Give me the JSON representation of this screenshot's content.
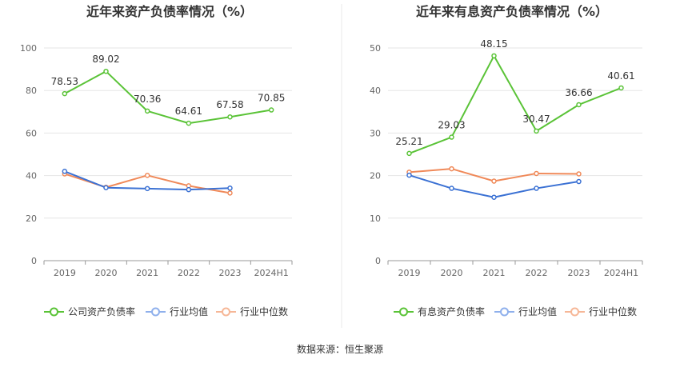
{
  "chart_data": [
    {
      "type": "line",
      "title": "近年来资产负债率情况（%）",
      "categories": [
        "2019",
        "2020",
        "2021",
        "2022",
        "2023",
        "2024H1"
      ],
      "ylim": [
        0,
        100
      ],
      "yticks": [
        0,
        20,
        40,
        60,
        80,
        100
      ],
      "ytick_labels": [
        "0",
        "20",
        "40",
        "60",
        "80",
        "100"
      ],
      "grid": true,
      "legend_position": "bottom",
      "series": [
        {
          "name": "公司资产负债率",
          "color": "#5ac337",
          "labeled": true,
          "values": [
            78.53,
            89.02,
            70.36,
            64.61,
            67.58,
            70.85
          ],
          "labels": [
            "78.53",
            "89.02",
            "70.36",
            "64.61",
            "67.58",
            "70.85"
          ]
        },
        {
          "name": "行业均值",
          "color": "#3c72d4",
          "labeled": false,
          "values": [
            42.0,
            34.3,
            33.9,
            33.4,
            34.1,
            null
          ]
        },
        {
          "name": "行业中位数",
          "color": "#f08a5a",
          "labeled": false,
          "values": [
            40.8,
            34.5,
            40.1,
            35.2,
            31.8,
            null
          ]
        }
      ]
    },
    {
      "type": "line",
      "title": "近年来有息资产负债率情况（%）",
      "categories": [
        "2019",
        "2020",
        "2021",
        "2022",
        "2023",
        "2024H1"
      ],
      "ylim": [
        0,
        50
      ],
      "yticks": [
        0,
        10,
        20,
        30,
        40,
        50
      ],
      "ytick_labels": [
        "0",
        "10",
        "20",
        "30",
        "40",
        "50"
      ],
      "grid": true,
      "legend_position": "bottom",
      "series": [
        {
          "name": "有息资产负债率",
          "color": "#5ac337",
          "labeled": true,
          "values": [
            25.21,
            29.03,
            48.15,
            30.47,
            36.66,
            40.61
          ],
          "labels": [
            "25.21",
            "29.03",
            "48.15",
            "30.47",
            "36.66",
            "40.61"
          ]
        },
        {
          "name": "行业均值",
          "color": "#3c72d4",
          "labeled": false,
          "values": [
            20.1,
            17.0,
            14.9,
            17.0,
            18.6,
            null
          ]
        },
        {
          "name": "行业中位数",
          "color": "#f08a5a",
          "labeled": false,
          "values": [
            20.8,
            21.6,
            18.7,
            20.5,
            20.4,
            null
          ]
        }
      ]
    }
  ],
  "legend_colors_light": {
    "行业均值": "#8fb0ec",
    "行业中位数": "#f6b797"
  },
  "source_text": "数据来源：恒生聚源"
}
